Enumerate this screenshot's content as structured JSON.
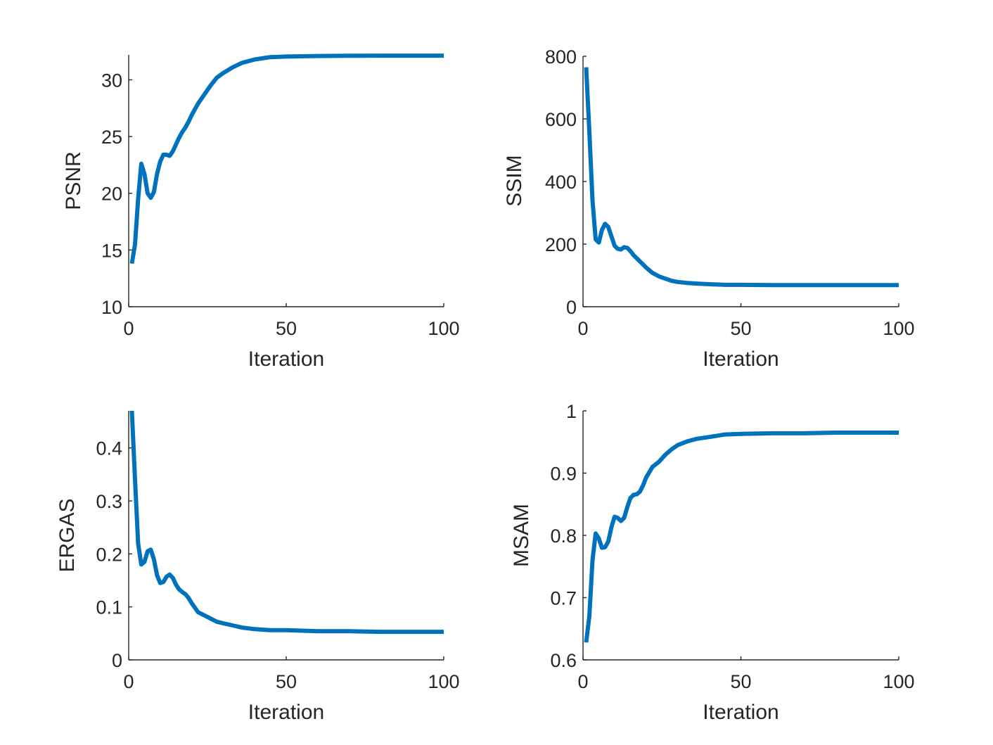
{
  "chart_data": [
    {
      "type": "line",
      "xlabel": "Iteration",
      "ylabel": "PSNR",
      "xlim": [
        0,
        100
      ],
      "ylim": [
        10,
        32.2
      ],
      "xticks": [
        0,
        50,
        100
      ],
      "yticks": [
        10,
        15,
        20,
        25,
        30
      ],
      "color": "#0072BD",
      "series": [
        {
          "x": [
            1,
            2,
            3,
            4,
            5,
            6,
            7,
            8,
            9,
            10,
            11,
            12,
            13,
            14,
            15,
            16,
            17,
            18,
            19,
            20,
            22,
            24,
            26,
            28,
            30,
            33,
            36,
            40,
            45,
            50,
            60,
            70,
            80,
            90,
            100
          ],
          "y": [
            13.8,
            15.5,
            19.5,
            22.6,
            21.7,
            20.0,
            19.6,
            20.1,
            21.7,
            22.8,
            23.4,
            23.4,
            23.3,
            23.7,
            24.3,
            24.9,
            25.4,
            25.8,
            26.3,
            26.9,
            27.9,
            28.7,
            29.5,
            30.2,
            30.6,
            31.1,
            31.5,
            31.8,
            32.0,
            32.05,
            32.1,
            32.12,
            32.13,
            32.13,
            32.13
          ]
        }
      ]
    },
    {
      "type": "line",
      "xlabel": "Iteration",
      "ylabel": "SSIM",
      "xlim": [
        0,
        100
      ],
      "ylim": [
        0,
        800
      ],
      "xticks": [
        0,
        50,
        100
      ],
      "yticks": [
        0,
        200,
        400,
        600,
        800
      ],
      "color": "#0072BD",
      "series": [
        {
          "x": [
            1,
            2,
            3,
            4,
            5,
            6,
            7,
            8,
            9,
            10,
            11,
            12,
            13,
            14,
            15,
            16,
            17,
            18,
            19,
            20,
            22,
            24,
            26,
            28,
            30,
            33,
            36,
            40,
            45,
            50,
            60,
            70,
            80,
            90,
            100
          ],
          "y": [
            765,
            560,
            340,
            215,
            205,
            245,
            265,
            255,
            225,
            195,
            185,
            183,
            190,
            188,
            178,
            165,
            155,
            145,
            135,
            125,
            108,
            97,
            90,
            83,
            79,
            76,
            74,
            72,
            70,
            70,
            69,
            69,
            69,
            69,
            69
          ]
        }
      ]
    },
    {
      "type": "line",
      "xlabel": "Iteration",
      "ylabel": "ERGAS",
      "xlim": [
        0,
        100
      ],
      "ylim": [
        0,
        0.47
      ],
      "xticks": [
        0,
        50,
        100
      ],
      "yticks": [
        0,
        0.1,
        0.2,
        0.3,
        0.4
      ],
      "ytick_labels": [
        "0",
        "0.1",
        "0.2",
        "0.3",
        "0.4"
      ],
      "color": "#0072BD",
      "series": [
        {
          "x": [
            1,
            2,
            3,
            4,
            5,
            6,
            7,
            8,
            9,
            10,
            11,
            12,
            13,
            14,
            15,
            16,
            17,
            18,
            19,
            20,
            22,
            24,
            26,
            28,
            30,
            33,
            36,
            40,
            45,
            50,
            60,
            70,
            80,
            90,
            100
          ],
          "y": [
            0.47,
            0.34,
            0.22,
            0.18,
            0.185,
            0.205,
            0.208,
            0.19,
            0.16,
            0.145,
            0.147,
            0.157,
            0.161,
            0.155,
            0.142,
            0.133,
            0.128,
            0.124,
            0.117,
            0.107,
            0.09,
            0.084,
            0.078,
            0.072,
            0.069,
            0.065,
            0.061,
            0.058,
            0.056,
            0.056,
            0.054,
            0.054,
            0.053,
            0.053,
            0.053
          ]
        }
      ]
    },
    {
      "type": "line",
      "xlabel": "Iteration",
      "ylabel": "MSAM",
      "xlim": [
        0,
        100
      ],
      "ylim": [
        0.6,
        1.0
      ],
      "xticks": [
        0,
        50,
        100
      ],
      "yticks": [
        0.6,
        0.7,
        0.8,
        0.9,
        1.0
      ],
      "ytick_labels": [
        "0.6",
        "0.7",
        "0.8",
        "0.9",
        "1"
      ],
      "color": "#0072BD",
      "series": [
        {
          "x": [
            1,
            2,
            3,
            4,
            5,
            6,
            7,
            8,
            9,
            10,
            11,
            12,
            13,
            14,
            15,
            16,
            17,
            18,
            19,
            20,
            22,
            24,
            26,
            28,
            30,
            33,
            36,
            40,
            45,
            50,
            60,
            70,
            80,
            90,
            100
          ],
          "y": [
            0.628,
            0.67,
            0.76,
            0.803,
            0.795,
            0.78,
            0.781,
            0.79,
            0.813,
            0.83,
            0.828,
            0.823,
            0.828,
            0.845,
            0.86,
            0.865,
            0.866,
            0.87,
            0.88,
            0.893,
            0.91,
            0.918,
            0.929,
            0.938,
            0.945,
            0.951,
            0.955,
            0.958,
            0.962,
            0.963,
            0.964,
            0.964,
            0.965,
            0.965,
            0.965
          ]
        }
      ]
    }
  ]
}
